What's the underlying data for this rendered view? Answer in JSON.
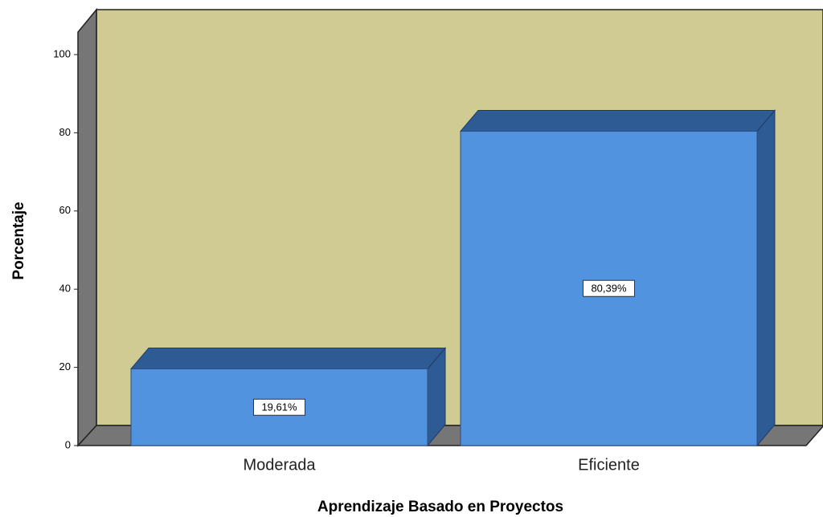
{
  "chart_data": {
    "type": "bar3d",
    "categories": [
      "Moderada",
      "Eficiente"
    ],
    "values": [
      19.61,
      80.39
    ],
    "value_labels": [
      "19,61%",
      "80,39%"
    ],
    "color": "#5293e0",
    "ylim": [
      0,
      100
    ],
    "yticks": [
      0,
      20,
      40,
      60,
      80,
      100
    ],
    "y_label": "Porcentaje",
    "x_label": "Aprendizaje Basado en Proyectos"
  }
}
